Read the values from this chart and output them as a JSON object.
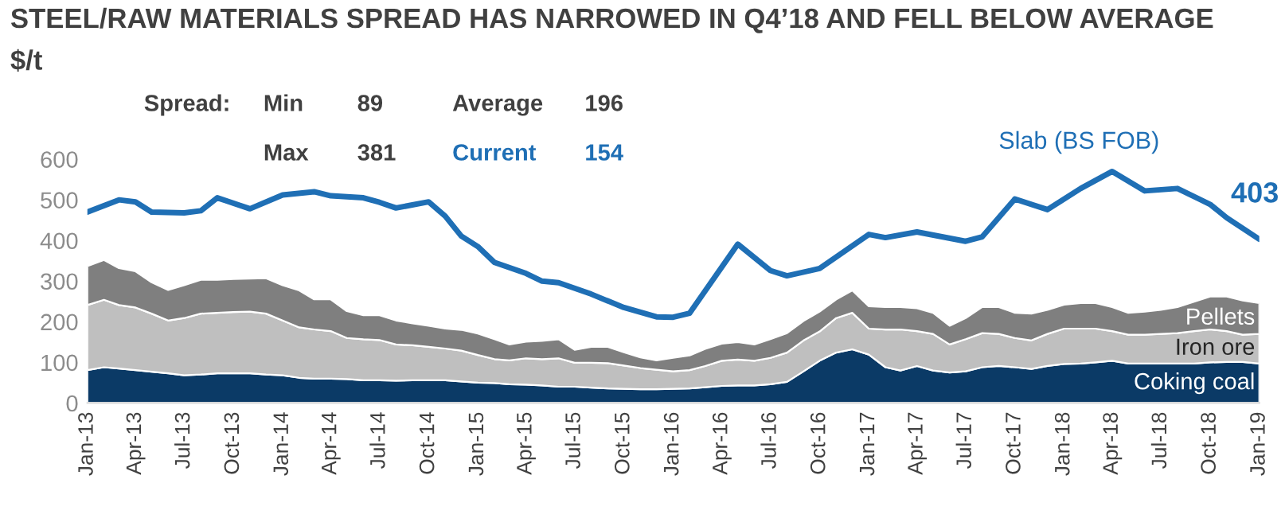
{
  "chart_data": {
    "type": "area",
    "stacked": true,
    "title": "STEEL/RAW MATERIALS SPREAD HAS NARROWED IN Q4’18 AND FELL BELOW AVERAGE",
    "ylabel": "$/t",
    "x": [
      "2013-01",
      "2013-02",
      "2013-03",
      "2013-04",
      "2013-05",
      "2013-06",
      "2013-07",
      "2013-08",
      "2013-09",
      "2013-10",
      "2013-11",
      "2013-12",
      "2014-01",
      "2014-02",
      "2014-03",
      "2014-04",
      "2014-05",
      "2014-06",
      "2014-07",
      "2014-08",
      "2014-09",
      "2014-10",
      "2014-11",
      "2014-12",
      "2015-01",
      "2015-02",
      "2015-03",
      "2015-04",
      "2015-05",
      "2015-06",
      "2015-07",
      "2015-08",
      "2015-09",
      "2015-10",
      "2015-11",
      "2015-12",
      "2016-01",
      "2016-02",
      "2016-03",
      "2016-04",
      "2016-05",
      "2016-06",
      "2016-07",
      "2016-08",
      "2016-09",
      "2016-10",
      "2016-11",
      "2016-12",
      "2017-01",
      "2017-02",
      "2017-03",
      "2017-04",
      "2017-05",
      "2017-06",
      "2017-07",
      "2017-08",
      "2017-09",
      "2017-10",
      "2017-11",
      "2017-12",
      "2018-01",
      "2018-02",
      "2018-03",
      "2018-04",
      "2018-05",
      "2018-06",
      "2018-07",
      "2018-08",
      "2018-09",
      "2018-10",
      "2018-11",
      "2018-12",
      "2019-01"
    ],
    "series": [
      {
        "name": "Coking coal",
        "color": "#0b3a66",
        "values": [
          81,
          88,
          85,
          81,
          77,
          73,
          68,
          70,
          73,
          73,
          73,
          70,
          68,
          62,
          60,
          60,
          59,
          56,
          56,
          55,
          56,
          56,
          56,
          53,
          50,
          49,
          46,
          45,
          43,
          40,
          40,
          38,
          36,
          35,
          34,
          34,
          35,
          36,
          39,
          42,
          43,
          43,
          46,
          52,
          78,
          104,
          124,
          132,
          119,
          88,
          80,
          91,
          80,
          75,
          78,
          88,
          91,
          88,
          84,
          91,
          96,
          97,
          100,
          104,
          97,
          97,
          97,
          97,
          97,
          100,
          101,
          101,
          97
        ]
      },
      {
        "name": "Iron ore",
        "color": "#bfbfbf",
        "values": [
          160,
          166,
          156,
          154,
          143,
          130,
          141,
          150,
          149,
          151,
          152,
          150,
          135,
          124,
          121,
          117,
          101,
          101,
          99,
          89,
          86,
          82,
          78,
          76,
          68,
          59,
          59,
          65,
          65,
          70,
          59,
          61,
          62,
          57,
          52,
          48,
          43,
          45,
          52,
          62,
          64,
          61,
          65,
          72,
          76,
          72,
          85,
          90,
          64,
          93,
          101,
          86,
          90,
          69,
          79,
          84,
          79,
          72,
          70,
          79,
          87,
          86,
          83,
          73,
          71,
          71,
          73,
          75,
          80,
          81,
          76,
          67,
          73
        ]
      },
      {
        "name": "Pellets",
        "color": "#7f7f7f",
        "values": [
          96,
          98,
          91,
          89,
          77,
          75,
          81,
          83,
          81,
          81,
          81,
          87,
          87,
          91,
          74,
          78,
          66,
          59,
          61,
          59,
          54,
          52,
          49,
          51,
          53,
          49,
          39,
          41,
          45,
          47,
          32,
          39,
          40,
          33,
          26,
          23,
          33,
          36,
          42,
          42,
          43,
          40,
          46,
          48,
          48,
          49,
          46,
          55,
          55,
          55,
          55,
          56,
          52,
          46,
          52,
          64,
          66,
          62,
          66,
          59,
          59,
          63,
          63,
          59,
          54,
          57,
          59,
          64,
          72,
          81,
          85,
          84,
          76
        ]
      },
      {
        "name": "Slab (BS FOB)",
        "type": "line",
        "color": "#1f6fb5",
        "x": [
          "2013-01",
          "2013-03",
          "2013-04",
          "2013-05",
          "2013-07",
          "2013-08",
          "2013-09",
          "2013-11",
          "2014-01",
          "2014-03",
          "2014-04",
          "2014-06",
          "2014-07",
          "2014-08",
          "2014-10",
          "2014-11",
          "2014-12",
          "2015-01",
          "2015-02",
          "2015-04",
          "2015-05",
          "2015-06",
          "2015-08",
          "2015-10",
          "2015-12",
          "2016-01",
          "2016-02",
          "2016-05",
          "2016-07",
          "2016-08",
          "2016-10",
          "2017-01",
          "2017-02",
          "2017-04",
          "2017-07",
          "2017-08",
          "2017-10",
          "2017-12",
          "2018-02",
          "2018-04",
          "2018-06",
          "2018-08",
          "2018-10",
          "2018-11",
          "2019-01"
        ],
        "values": [
          470,
          500,
          495,
          470,
          468,
          473,
          505,
          478,
          512,
          520,
          510,
          505,
          494,
          480,
          495,
          460,
          411,
          385,
          346,
          319,
          300,
          296,
          268,
          235,
          212,
          211,
          221,
          391,
          326,
          313,
          331,
          415,
          407,
          421,
          398,
          409,
          502,
          476,
          528,
          570,
          522,
          528,
          489,
          456,
          403
        ]
      }
    ],
    "xlim": [
      "2013-01",
      "2019-01"
    ],
    "xticks": [
      {
        "value": "2013-01",
        "label": "Jan-13"
      },
      {
        "value": "2013-04",
        "label": "Apr-13"
      },
      {
        "value": "2013-07",
        "label": "Jul-13"
      },
      {
        "value": "2013-10",
        "label": "Oct-13"
      },
      {
        "value": "2014-01",
        "label": "Jan-14"
      },
      {
        "value": "2014-04",
        "label": "Apr-14"
      },
      {
        "value": "2014-07",
        "label": "Jul-14"
      },
      {
        "value": "2014-10",
        "label": "Oct-14"
      },
      {
        "value": "2015-01",
        "label": "Jan-15"
      },
      {
        "value": "2015-04",
        "label": "Apr-15"
      },
      {
        "value": "2015-07",
        "label": "Jul-15"
      },
      {
        "value": "2015-10",
        "label": "Oct-15"
      },
      {
        "value": "2016-01",
        "label": "Jan-16"
      },
      {
        "value": "2016-04",
        "label": "Apr-16"
      },
      {
        "value": "2016-07",
        "label": "Jul-16"
      },
      {
        "value": "2016-10",
        "label": "Oct-16"
      },
      {
        "value": "2017-01",
        "label": "Jan-17"
      },
      {
        "value": "2017-04",
        "label": "Apr-17"
      },
      {
        "value": "2017-07",
        "label": "Jul-17"
      },
      {
        "value": "2017-10",
        "label": "Oct-17"
      },
      {
        "value": "2018-01",
        "label": "Jan-18"
      },
      {
        "value": "2018-04",
        "label": "Apr-18"
      },
      {
        "value": "2018-07",
        "label": "Jul-18"
      },
      {
        "value": "2018-10",
        "label": "Oct-18"
      },
      {
        "value": "2019-01",
        "label": "Jan-19"
      }
    ],
    "ylim": [
      0,
      600
    ],
    "yticks": [
      0,
      100,
      200,
      300,
      400,
      500,
      600
    ],
    "grid": false,
    "legend": false,
    "annotations": [
      "Spread:",
      "Min",
      "89",
      "Average",
      "196",
      "Max",
      "381",
      "Current",
      "154",
      {
        "text": "403",
        "x": "2019-01",
        "y": 403
      }
    ]
  }
}
